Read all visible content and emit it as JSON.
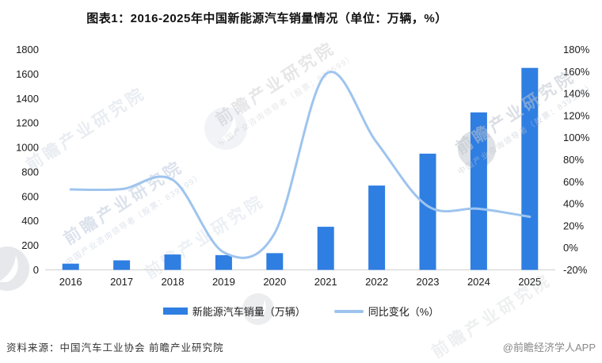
{
  "chart_data": {
    "type": "bar+line",
    "title": "图表1：2016-2025年中国新能源汽车销量情况（单位：万辆，%）",
    "categories": [
      "2016",
      "2017",
      "2018",
      "2019",
      "2020",
      "2021",
      "2022",
      "2023",
      "2024",
      "2025"
    ],
    "series": [
      {
        "name": "新能源汽车销量（万辆）",
        "type": "bar",
        "axis": "left",
        "color": "#2F7EE2",
        "values": [
          50.7,
          77.7,
          125.6,
          120.6,
          136.7,
          352.1,
          688.7,
          949.5,
          1286.6,
          1650
        ]
      },
      {
        "name": "同比变化（%）",
        "type": "line",
        "axis": "right",
        "color": "#9EC4EE",
        "smooth": true,
        "values": [
          53.0,
          53.3,
          61.7,
          -4.0,
          13.4,
          157.6,
          95.6,
          37.9,
          35.5,
          28.2
        ]
      }
    ],
    "left_axis": {
      "min": 0,
      "max": 1800,
      "tick_labels": [
        "0",
        "200",
        "400",
        "600",
        "800",
        "1000",
        "1200",
        "1400",
        "1600",
        "1800"
      ]
    },
    "right_axis": {
      "min": -20,
      "max": 180,
      "tick_labels": [
        "-20%",
        "0%",
        "20%",
        "40%",
        "60%",
        "80%",
        "100%",
        "120%",
        "140%",
        "160%",
        "180%"
      ]
    },
    "grid": false,
    "legend_position": "bottom"
  },
  "footer": {
    "source": "资料来源：中国汽车工业协会  前瞻产业研究院",
    "credit": "@前瞻经济学人APP"
  },
  "watermark": {
    "text": "前瞻产业研究院",
    "subtext": "中国产业咨询领导者（股票：839599）"
  },
  "colors": {
    "bar": "#2F7EE2",
    "line": "#9EC4EE",
    "axis_text": "#1a1a1a",
    "axis_line": "#d0d0d0",
    "source_text": "#333333",
    "credit_text": "#888888"
  }
}
